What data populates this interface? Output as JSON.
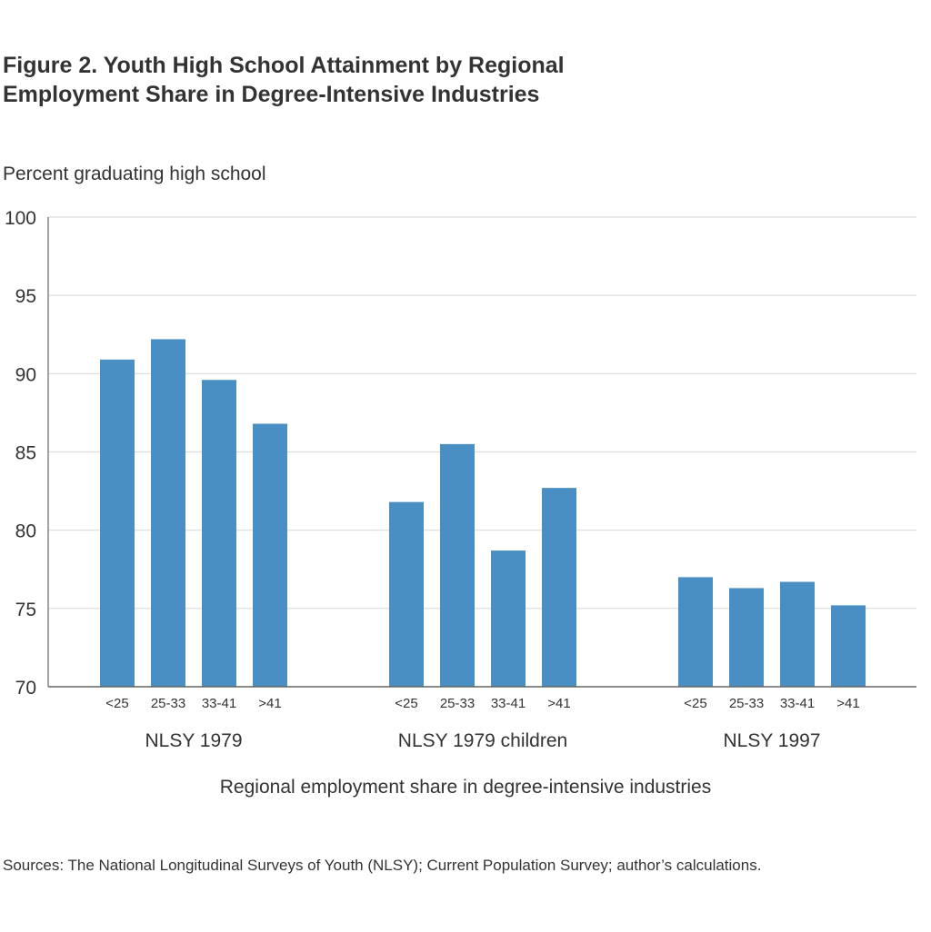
{
  "chart_data": {
    "type": "bar",
    "title": "Figure 2. Youth High School Attainment by Regional Employment Share in Degree-Intensive Industries",
    "title_lines": [
      "Figure 2. Youth High School Attainment by Regional",
      "Employment Share in Degree-Intensive Industries"
    ],
    "ylabel": "Percent graduating high school",
    "xlabel": "Regional employment share in degree-intensive industries",
    "ylim": [
      70,
      100
    ],
    "yticks": [
      70,
      75,
      80,
      85,
      90,
      95,
      100
    ],
    "grid": true,
    "bar_color": "#4a8fc4",
    "groups": [
      {
        "name": "NLSY 1979",
        "categories": [
          "<25",
          "25-33",
          "33-41",
          ">41"
        ],
        "values": [
          90.9,
          92.2,
          89.6,
          86.8
        ]
      },
      {
        "name": "NLSY 1979 children",
        "categories": [
          "<25",
          "25-33",
          "33-41",
          ">41"
        ],
        "values": [
          81.8,
          85.5,
          78.7,
          82.7
        ]
      },
      {
        "name": "NLSY 1997",
        "categories": [
          "<25",
          "25-33",
          "33-41",
          ">41"
        ],
        "values": [
          77.0,
          76.3,
          76.7,
          75.2
        ]
      }
    ],
    "source": "Sources: The National Longitudinal Surveys of Youth (NLSY); Current Population Survey; author’s calculations."
  }
}
